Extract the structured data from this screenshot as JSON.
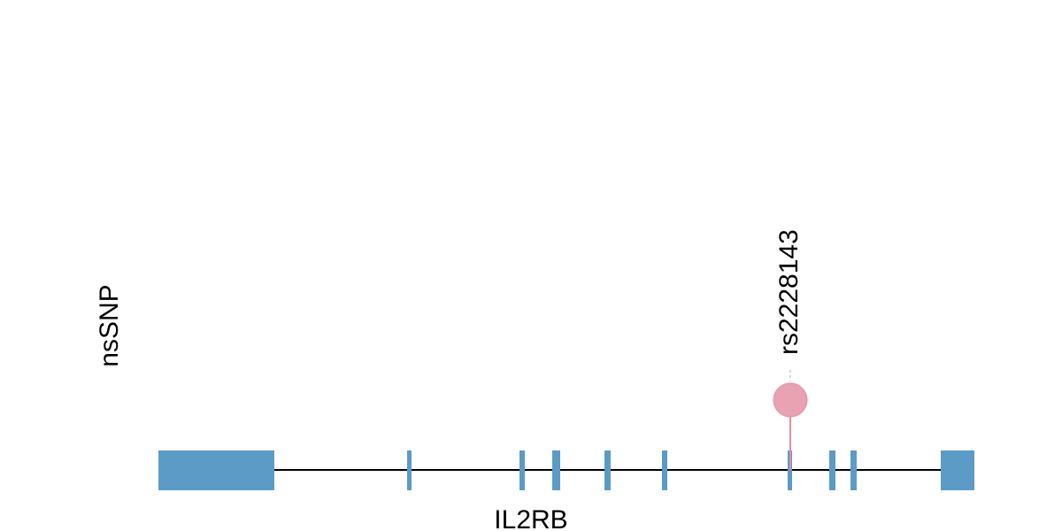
{
  "track_label": "nsSNP",
  "gene": {
    "name": "IL2RB",
    "line_color": "#000000",
    "exon_color": "#5b9bc6",
    "exons": [
      {
        "id": "exon-1"
      },
      {
        "id": "exon-2"
      },
      {
        "id": "exon-3"
      },
      {
        "id": "exon-4"
      },
      {
        "id": "exon-5"
      },
      {
        "id": "exon-6"
      },
      {
        "id": "exon-7"
      },
      {
        "id": "exon-8"
      },
      {
        "id": "exon-9"
      },
      {
        "id": "exon-10"
      },
      {
        "id": "exon-11"
      }
    ]
  },
  "snps": [
    {
      "id": "rs2228143",
      "label": "rs2228143",
      "color": "#e8a2b2",
      "stem_color": "#e88da1"
    }
  ]
}
